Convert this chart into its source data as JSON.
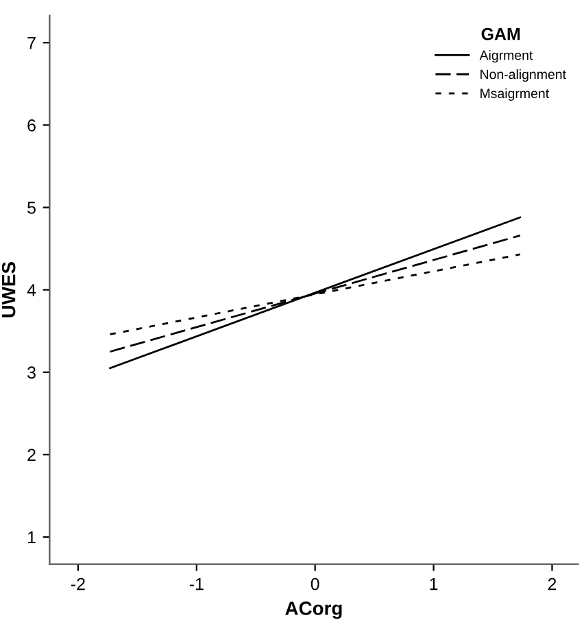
{
  "chart_data": {
    "type": "line",
    "xlabel": "ACorg",
    "ylabel": "UWES",
    "legend_title": "GAM",
    "legend": "top right",
    "grid": false,
    "x": [
      -1.73,
      1.73
    ],
    "series": [
      {
        "name": "Aigrment",
        "color": "#000000",
        "line_style": "solid",
        "values": [
          3.05,
          4.88
        ]
      },
      {
        "name": "Non-alignment",
        "color": "#000000",
        "line_style": "dashed",
        "values": [
          3.25,
          4.66
        ]
      },
      {
        "name": "Msaigrment",
        "color": "#000000",
        "line_style": "dotted",
        "values": [
          3.46,
          4.43
        ]
      }
    ],
    "xlim": [
      -2.24,
      2.22
    ],
    "xticks": [
      -2,
      -1,
      0,
      1,
      2
    ],
    "ylim": [
      0.67,
      7.33
    ],
    "yticks": [
      1,
      2,
      3,
      4,
      5,
      6,
      7
    ]
  }
}
